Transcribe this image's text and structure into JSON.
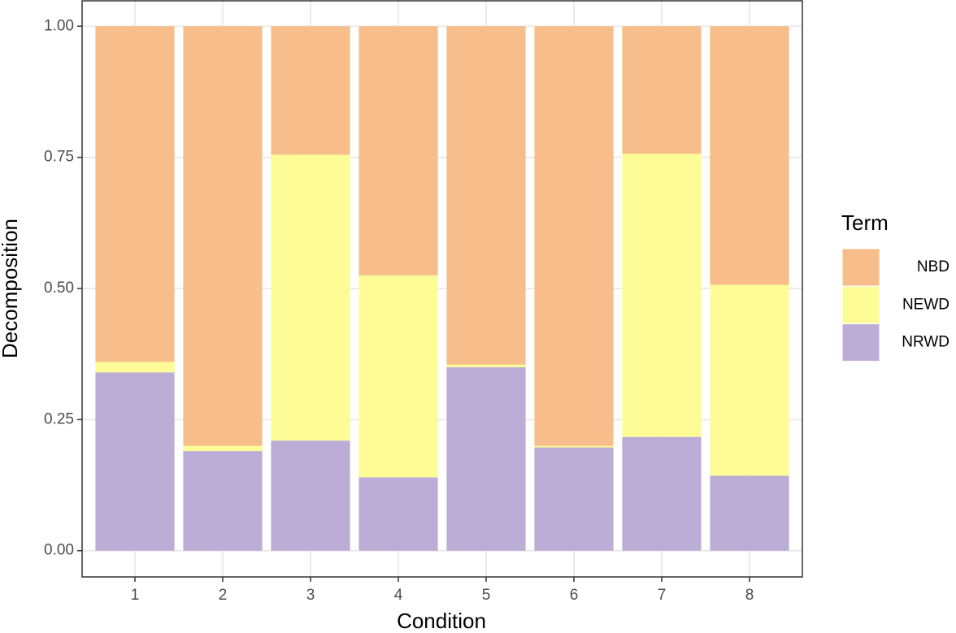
{
  "chart_data": {
    "type": "stacked_bar",
    "categories": [
      "1",
      "2",
      "3",
      "4",
      "5",
      "6",
      "7",
      "8"
    ],
    "series": [
      {
        "name": "NBD",
        "color": "#f7bd8a",
        "values": [
          0.64,
          0.8,
          0.245,
          0.475,
          0.645,
          0.8,
          0.243,
          0.493
        ]
      },
      {
        "name": "NEWD",
        "color": "#fdfc96",
        "values": [
          0.02,
          0.01,
          0.545,
          0.385,
          0.005,
          0.003,
          0.54,
          0.364
        ]
      },
      {
        "name": "NRWD",
        "color": "#bcadd6",
        "values": [
          0.34,
          0.19,
          0.21,
          0.14,
          0.35,
          0.197,
          0.217,
          0.143
        ]
      }
    ],
    "ylim": [
      -0.05,
      1.05
    ],
    "yticks": [
      {
        "value": 0,
        "label": "0.00"
      },
      {
        "value": 0.25,
        "label": "0.25"
      },
      {
        "value": 0.5,
        "label": "0.50"
      },
      {
        "value": 0.75,
        "label": "0.75"
      },
      {
        "value": 1,
        "label": "1.00"
      }
    ],
    "xlabel": "Condition",
    "ylabel": "Decomposition",
    "legend_title": "Term",
    "grid": true
  }
}
